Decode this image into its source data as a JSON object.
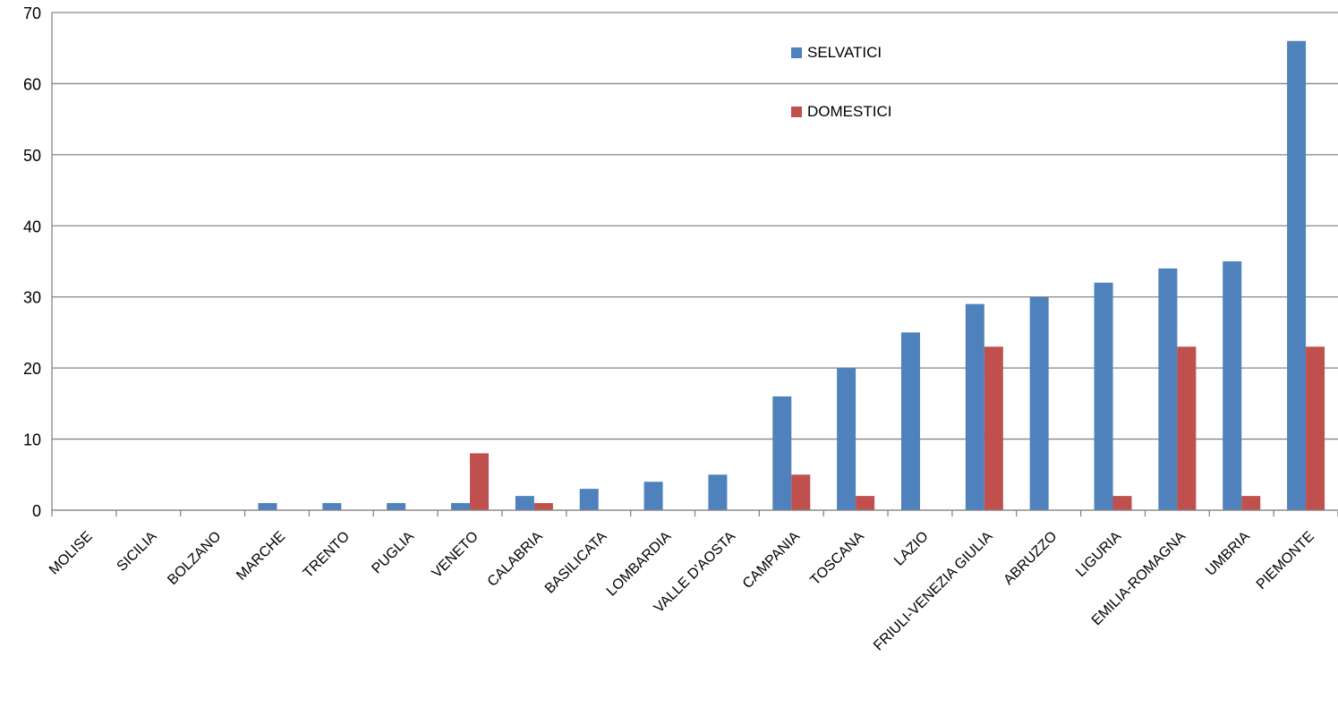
{
  "chart_data": {
    "type": "bar",
    "title": "",
    "xlabel": "",
    "ylabel": "",
    "ylim": [
      0,
      70
    ],
    "yticks": [
      0,
      10,
      20,
      30,
      40,
      50,
      60,
      70
    ],
    "grid": true,
    "legend_position": "top-right",
    "categories": [
      "MOLISE",
      "SICILIA",
      "BOLZANO",
      "MARCHE",
      "TRENTO",
      "PUGLIA",
      "VENETO",
      "CALABRIA",
      "BASILICATA",
      "LOMBARDIA",
      "VALLE D'AOSTA",
      "CAMPANIA",
      "TOSCANA",
      "LAZIO",
      "FRIULI-VENEZIA GIULIA",
      "ABRUZZO",
      "LIGURIA",
      "EMILIA-ROMAGNA",
      "UMBRIA",
      "PIEMONTE"
    ],
    "series": [
      {
        "name": "SELVATICI",
        "color": "#4F81BD",
        "values": [
          0,
          0,
          0,
          1,
          1,
          1,
          1,
          2,
          3,
          4,
          5,
          16,
          20,
          25,
          29,
          30,
          32,
          34,
          35,
          66
        ]
      },
      {
        "name": "DOMESTICI",
        "color": "#C0504D",
        "values": [
          0,
          0,
          0,
          0,
          0,
          0,
          8,
          1,
          0,
          0,
          0,
          5,
          2,
          0,
          23,
          0,
          2,
          23,
          2,
          23
        ]
      }
    ]
  }
}
